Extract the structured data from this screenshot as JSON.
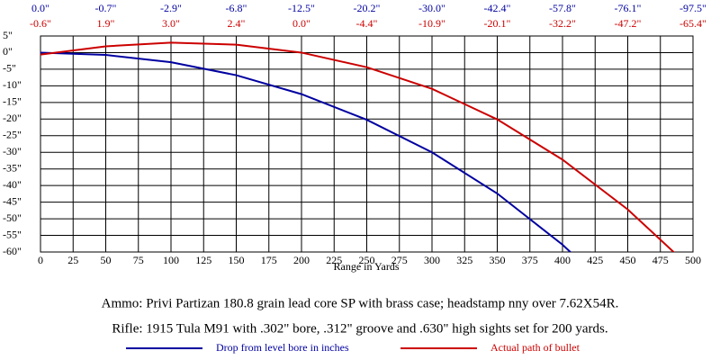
{
  "chart_data": {
    "type": "line",
    "x": [
      0,
      50,
      100,
      150,
      200,
      250,
      300,
      350,
      400,
      450,
      500
    ],
    "series": [
      {
        "name": "Drop from level bore in inches",
        "color": "#0000a0",
        "values": [
          0.0,
          -0.7,
          -2.9,
          -6.8,
          -12.5,
          -20.2,
          -30.0,
          -42.4,
          -57.8,
          -76.1,
          -97.5
        ],
        "value_labels": [
          "0.0\"",
          "-0.7\"",
          "-2.9\"",
          "-6.8\"",
          "-12.5\"",
          "-20.2\"",
          "-30.0\"",
          "-42.4\"",
          "-57.8\"",
          "-76.1\"",
          "-97.5\""
        ]
      },
      {
        "name": "Actual path of bullet",
        "color": "#cc0000",
        "values": [
          -0.6,
          1.9,
          3.0,
          2.4,
          0.0,
          -4.4,
          -10.9,
          -20.1,
          -32.2,
          -47.2,
          -65.4
        ],
        "value_labels": [
          "-0.6\"",
          "1.9\"",
          "3.0\"",
          "2.4\"",
          "0.0\"",
          "-4.4\"",
          "-10.9\"",
          "-20.1\"",
          "-32.2\"",
          "-47.2\"",
          "-65.4\""
        ]
      }
    ],
    "x_label": "Range in Yards",
    "xlim": [
      0,
      500
    ],
    "xticks": [
      0,
      25,
      50,
      75,
      100,
      125,
      150,
      175,
      200,
      225,
      250,
      275,
      300,
      325,
      350,
      375,
      400,
      425,
      450,
      475,
      500
    ],
    "ylim": [
      -60,
      5
    ],
    "yticks": [
      {
        "value": 5,
        "label": "5\""
      },
      {
        "value": 0,
        "label": "0\""
      },
      {
        "value": -5,
        "label": "-5\""
      },
      {
        "value": -10,
        "label": "-10\""
      },
      {
        "value": -15,
        "label": "-15\""
      },
      {
        "value": -20,
        "label": "-20\""
      },
      {
        "value": -25,
        "label": "-25\""
      },
      {
        "value": -30,
        "label": "-30\""
      },
      {
        "value": -35,
        "label": "-35\""
      },
      {
        "value": -40,
        "label": "-40\""
      },
      {
        "value": -45,
        "label": "-45\""
      },
      {
        "value": -50,
        "label": "-50\""
      },
      {
        "value": -55,
        "label": "-55\""
      },
      {
        "value": -60,
        "label": "-60\""
      }
    ],
    "grid": true,
    "annotations": [
      "Ammo:  Privi Partizan 180.8 grain lead core SP with brass case; headstamp nny over 7.62X54R.",
      "Rifle:  1915 Tula M91 with .302\" bore, .312\" groove and .630\" high sights set for 200 yards."
    ]
  }
}
